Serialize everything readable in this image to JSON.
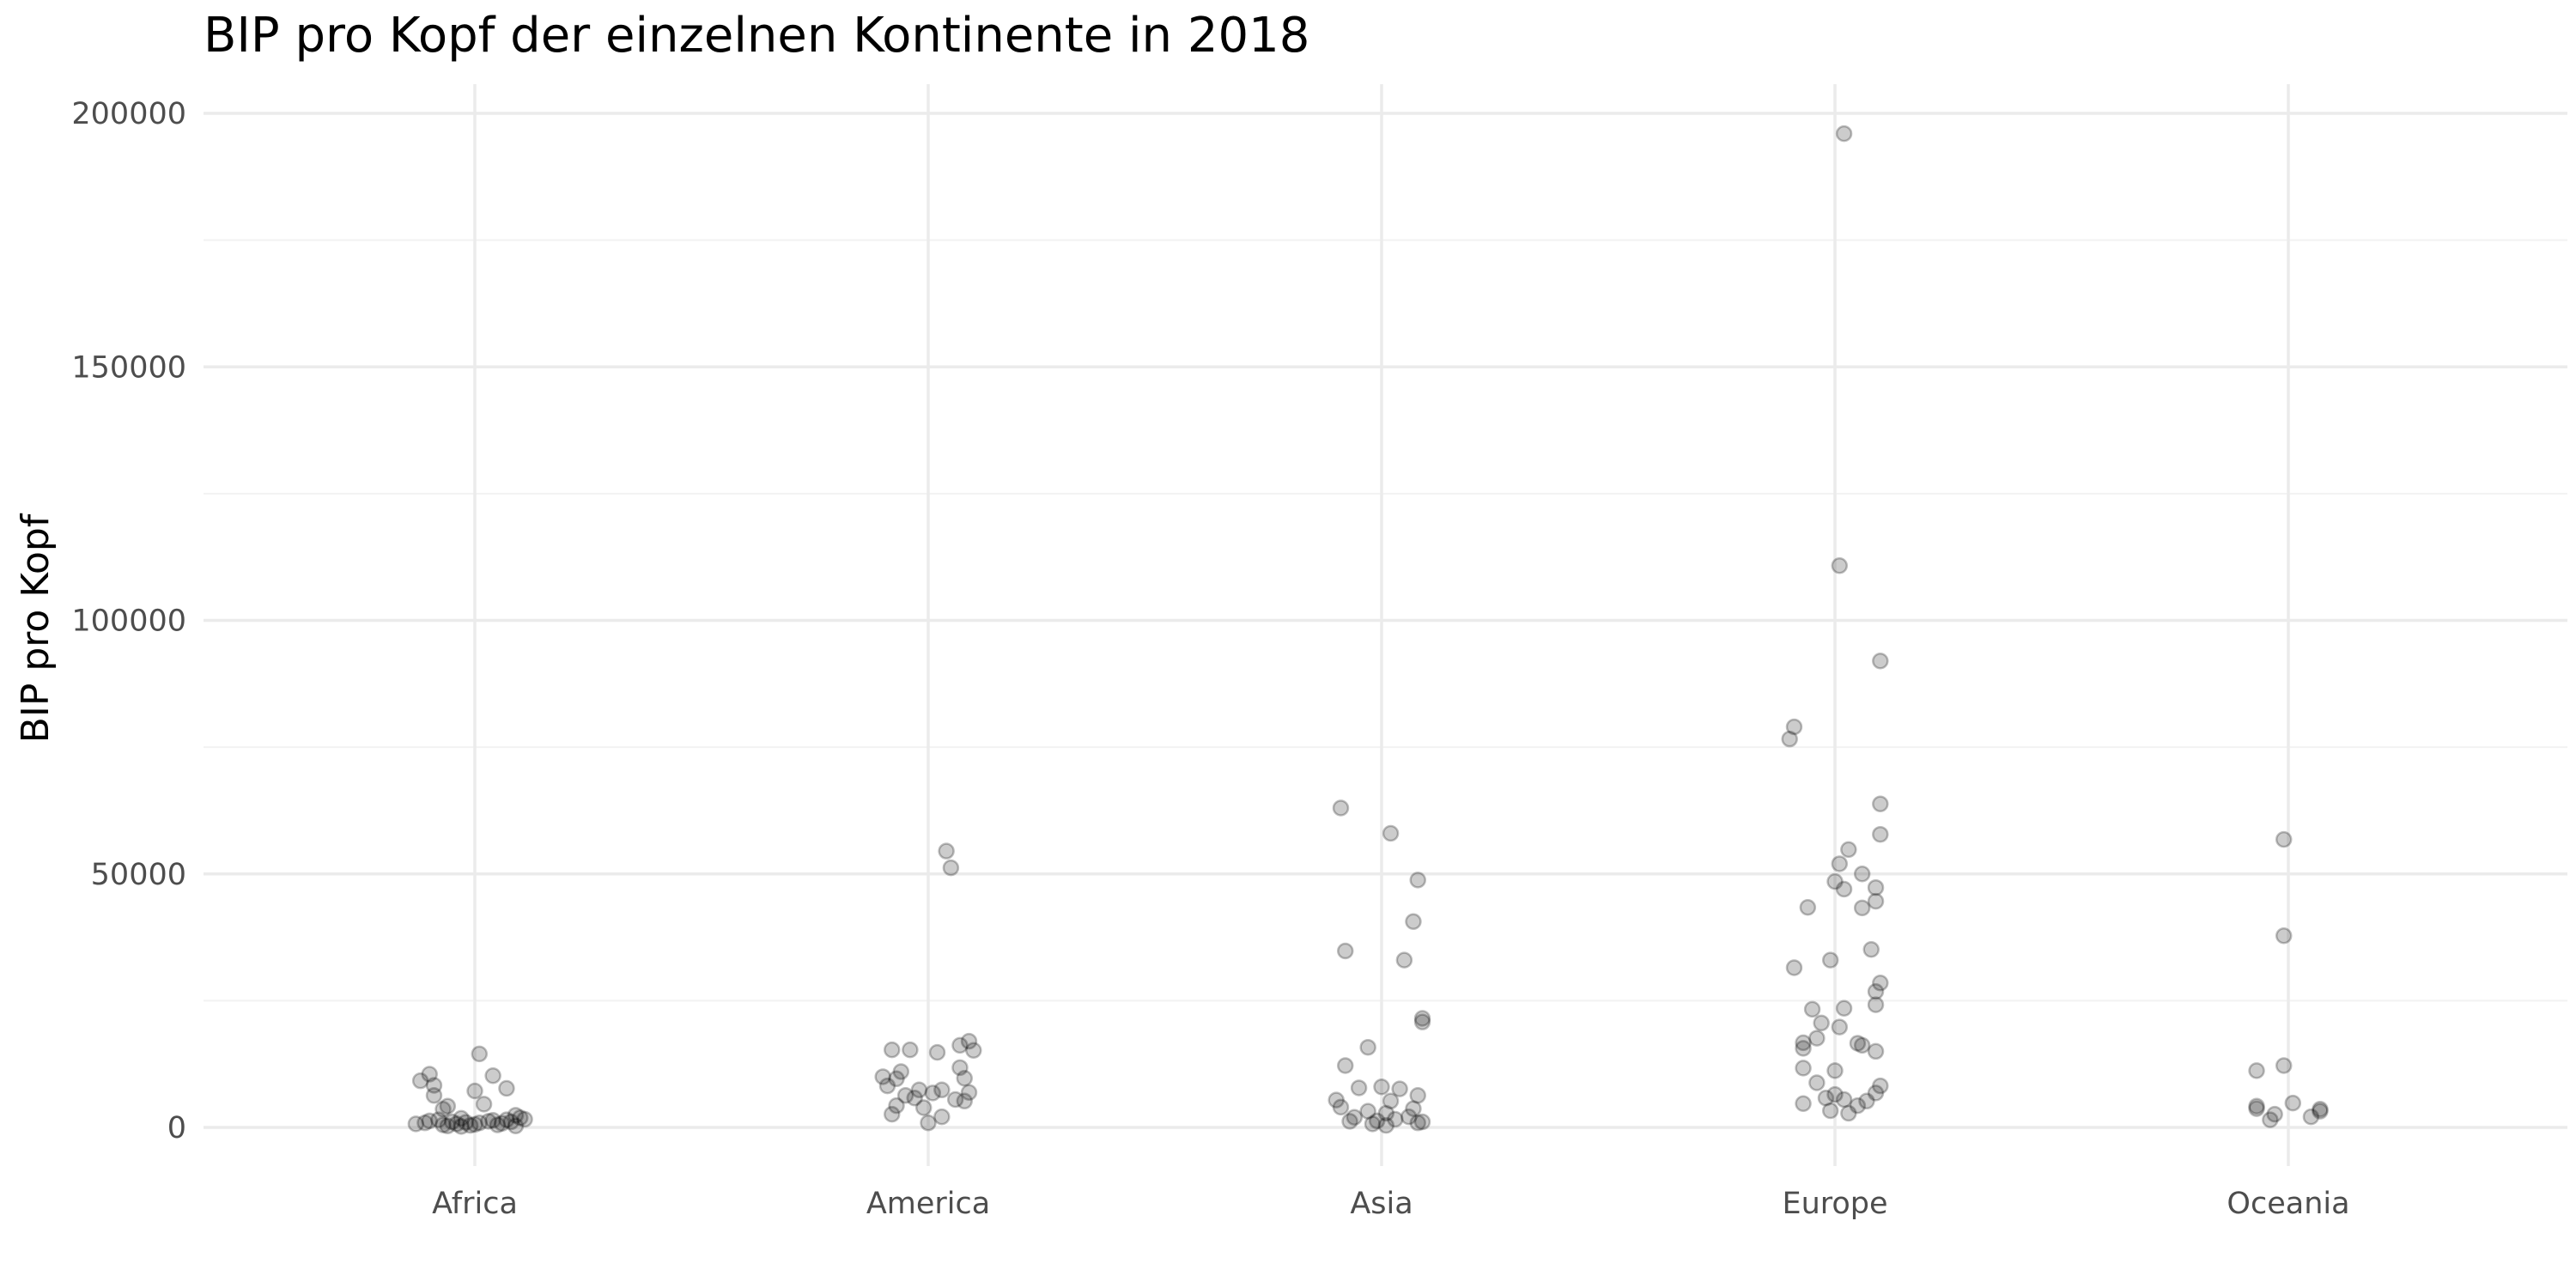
{
  "chart_data": {
    "type": "scatter",
    "title": "BIP pro Kopf der einzelnen Kontinente in 2018",
    "xlabel": "",
    "ylabel": "BIP pro Kopf",
    "categories": [
      "Africa",
      "America",
      "Asia",
      "Europe",
      "Oceania"
    ],
    "ylim": [
      -5000,
      205000
    ],
    "yticks": [
      0,
      50000,
      100000,
      150000,
      200000
    ],
    "ytick_labels": [
      "0",
      "50000",
      "100000",
      "150000",
      "200000"
    ],
    "grid": true,
    "legend": "none",
    "point_color": "#000000",
    "point_alpha": 0.2,
    "points": [
      {
        "category": "Africa",
        "jitter": -0.1,
        "y": 10500
      },
      {
        "category": "Africa",
        "jitter": -0.12,
        "y": 9200
      },
      {
        "category": "Africa",
        "jitter": -0.09,
        "y": 8300
      },
      {
        "category": "Africa",
        "jitter": 0.01,
        "y": 14500
      },
      {
        "category": "Africa",
        "jitter": 0.04,
        "y": 10200
      },
      {
        "category": "Africa",
        "jitter": 0.07,
        "y": 7700
      },
      {
        "category": "Africa",
        "jitter": 0.0,
        "y": 7200
      },
      {
        "category": "Africa",
        "jitter": -0.09,
        "y": 6300
      },
      {
        "category": "Africa",
        "jitter": 0.02,
        "y": 4600
      },
      {
        "category": "Africa",
        "jitter": -0.06,
        "y": 4200
      },
      {
        "category": "Africa",
        "jitter": -0.07,
        "y": 3600
      },
      {
        "category": "Africa",
        "jitter": 0.09,
        "y": 2400
      },
      {
        "category": "Africa",
        "jitter": 0.1,
        "y": 1900
      },
      {
        "category": "Africa",
        "jitter": 0.07,
        "y": 1500
      },
      {
        "category": "Africa",
        "jitter": -0.1,
        "y": 1300
      },
      {
        "category": "Africa",
        "jitter": -0.03,
        "y": 1800
      },
      {
        "category": "Africa",
        "jitter": -0.05,
        "y": 1100
      },
      {
        "category": "Africa",
        "jitter": -0.11,
        "y": 900
      },
      {
        "category": "Africa",
        "jitter": -0.13,
        "y": 700
      },
      {
        "category": "Africa",
        "jitter": -0.07,
        "y": 500
      },
      {
        "category": "Africa",
        "jitter": -0.06,
        "y": 300
      },
      {
        "category": "Africa",
        "jitter": -0.04,
        "y": 700
      },
      {
        "category": "Africa",
        "jitter": -0.02,
        "y": 1000
      },
      {
        "category": "Africa",
        "jitter": -0.01,
        "y": 400
      },
      {
        "category": "Africa",
        "jitter": 0.0,
        "y": 600
      },
      {
        "category": "Africa",
        "jitter": 0.01,
        "y": 900
      },
      {
        "category": "Africa",
        "jitter": 0.03,
        "y": 1200
      },
      {
        "category": "Africa",
        "jitter": 0.05,
        "y": 500
      },
      {
        "category": "Africa",
        "jitter": 0.06,
        "y": 800
      },
      {
        "category": "Africa",
        "jitter": 0.08,
        "y": 1100
      },
      {
        "category": "Africa",
        "jitter": 0.09,
        "y": 300
      },
      {
        "category": "Africa",
        "jitter": 0.11,
        "y": 1600
      },
      {
        "category": "Africa",
        "jitter": -0.08,
        "y": 1500
      },
      {
        "category": "Africa",
        "jitter": 0.04,
        "y": 1400
      },
      {
        "category": "Africa",
        "jitter": -0.03,
        "y": 200
      },
      {
        "category": "America",
        "jitter": 0.04,
        "y": 54500
      },
      {
        "category": "America",
        "jitter": 0.05,
        "y": 51200
      },
      {
        "category": "America",
        "jitter": 0.09,
        "y": 17000
      },
      {
        "category": "America",
        "jitter": 0.1,
        "y": 15200
      },
      {
        "category": "America",
        "jitter": -0.08,
        "y": 15300
      },
      {
        "category": "America",
        "jitter": -0.04,
        "y": 15300
      },
      {
        "category": "America",
        "jitter": 0.02,
        "y": 14800
      },
      {
        "category": "America",
        "jitter": 0.07,
        "y": 16200
      },
      {
        "category": "America",
        "jitter": 0.07,
        "y": 11800
      },
      {
        "category": "America",
        "jitter": -0.06,
        "y": 11000
      },
      {
        "category": "America",
        "jitter": -0.1,
        "y": 10000
      },
      {
        "category": "America",
        "jitter": -0.07,
        "y": 9600
      },
      {
        "category": "America",
        "jitter": -0.09,
        "y": 8200
      },
      {
        "category": "America",
        "jitter": 0.08,
        "y": 9700
      },
      {
        "category": "America",
        "jitter": -0.02,
        "y": 7400
      },
      {
        "category": "America",
        "jitter": 0.01,
        "y": 6800
      },
      {
        "category": "America",
        "jitter": 0.03,
        "y": 7400
      },
      {
        "category": "America",
        "jitter": 0.09,
        "y": 6900
      },
      {
        "category": "America",
        "jitter": -0.03,
        "y": 5800
      },
      {
        "category": "America",
        "jitter": 0.08,
        "y": 5200
      },
      {
        "category": "America",
        "jitter": 0.06,
        "y": 5500
      },
      {
        "category": "America",
        "jitter": -0.07,
        "y": 4300
      },
      {
        "category": "America",
        "jitter": -0.01,
        "y": 3900
      },
      {
        "category": "America",
        "jitter": -0.08,
        "y": 2600
      },
      {
        "category": "America",
        "jitter": 0.03,
        "y": 2100
      },
      {
        "category": "America",
        "jitter": 0.0,
        "y": 900
      },
      {
        "category": "America",
        "jitter": -0.05,
        "y": 6300
      },
      {
        "category": "Asia",
        "jitter": -0.09,
        "y": 63000
      },
      {
        "category": "Asia",
        "jitter": 0.02,
        "y": 58000
      },
      {
        "category": "Asia",
        "jitter": 0.08,
        "y": 48800
      },
      {
        "category": "Asia",
        "jitter": 0.07,
        "y": 40600
      },
      {
        "category": "Asia",
        "jitter": -0.08,
        "y": 34800
      },
      {
        "category": "Asia",
        "jitter": 0.05,
        "y": 33000
      },
      {
        "category": "Asia",
        "jitter": 0.09,
        "y": 21500
      },
      {
        "category": "Asia",
        "jitter": 0.09,
        "y": 20800
      },
      {
        "category": "Asia",
        "jitter": -0.03,
        "y": 15800
      },
      {
        "category": "Asia",
        "jitter": -0.08,
        "y": 12200
      },
      {
        "category": "Asia",
        "jitter": -0.05,
        "y": 7800
      },
      {
        "category": "Asia",
        "jitter": 0.0,
        "y": 8000
      },
      {
        "category": "Asia",
        "jitter": 0.04,
        "y": 7600
      },
      {
        "category": "Asia",
        "jitter": 0.08,
        "y": 6300
      },
      {
        "category": "Asia",
        "jitter": -0.1,
        "y": 5400
      },
      {
        "category": "Asia",
        "jitter": 0.02,
        "y": 5200
      },
      {
        "category": "Asia",
        "jitter": -0.09,
        "y": 4000
      },
      {
        "category": "Asia",
        "jitter": 0.07,
        "y": 3700
      },
      {
        "category": "Asia",
        "jitter": -0.03,
        "y": 3200
      },
      {
        "category": "Asia",
        "jitter": 0.01,
        "y": 2800
      },
      {
        "category": "Asia",
        "jitter": -0.06,
        "y": 2000
      },
      {
        "category": "Asia",
        "jitter": 0.06,
        "y": 2100
      },
      {
        "category": "Asia",
        "jitter": -0.07,
        "y": 1200
      },
      {
        "category": "Asia",
        "jitter": -0.01,
        "y": 1300
      },
      {
        "category": "Asia",
        "jitter": 0.03,
        "y": 1600
      },
      {
        "category": "Asia",
        "jitter": 0.09,
        "y": 1100
      },
      {
        "category": "Asia",
        "jitter": 0.08,
        "y": 900
      },
      {
        "category": "Asia",
        "jitter": -0.02,
        "y": 700
      },
      {
        "category": "Asia",
        "jitter": 0.01,
        "y": 400
      },
      {
        "category": "Europe",
        "jitter": 0.02,
        "y": 196000
      },
      {
        "category": "Europe",
        "jitter": 0.01,
        "y": 110800
      },
      {
        "category": "Europe",
        "jitter": 0.1,
        "y": 92000
      },
      {
        "category": "Europe",
        "jitter": -0.09,
        "y": 79000
      },
      {
        "category": "Europe",
        "jitter": -0.1,
        "y": 76600
      },
      {
        "category": "Europe",
        "jitter": 0.1,
        "y": 63800
      },
      {
        "category": "Europe",
        "jitter": 0.1,
        "y": 57800
      },
      {
        "category": "Europe",
        "jitter": 0.03,
        "y": 54800
      },
      {
        "category": "Europe",
        "jitter": 0.01,
        "y": 52000
      },
      {
        "category": "Europe",
        "jitter": 0.06,
        "y": 50000
      },
      {
        "category": "Europe",
        "jitter": 0.0,
        "y": 48500
      },
      {
        "category": "Europe",
        "jitter": 0.02,
        "y": 47000
      },
      {
        "category": "Europe",
        "jitter": 0.09,
        "y": 47300
      },
      {
        "category": "Europe",
        "jitter": -0.06,
        "y": 43400
      },
      {
        "category": "Europe",
        "jitter": 0.06,
        "y": 43300
      },
      {
        "category": "Europe",
        "jitter": 0.09,
        "y": 44600
      },
      {
        "category": "Europe",
        "jitter": 0.08,
        "y": 35100
      },
      {
        "category": "Europe",
        "jitter": -0.01,
        "y": 33000
      },
      {
        "category": "Europe",
        "jitter": -0.09,
        "y": 31500
      },
      {
        "category": "Europe",
        "jitter": 0.1,
        "y": 28500
      },
      {
        "category": "Europe",
        "jitter": 0.09,
        "y": 26800
      },
      {
        "category": "Europe",
        "jitter": 0.09,
        "y": 24200
      },
      {
        "category": "Europe",
        "jitter": -0.05,
        "y": 23300
      },
      {
        "category": "Europe",
        "jitter": 0.02,
        "y": 23500
      },
      {
        "category": "Europe",
        "jitter": -0.03,
        "y": 20600
      },
      {
        "category": "Europe",
        "jitter": 0.01,
        "y": 19800
      },
      {
        "category": "Europe",
        "jitter": -0.04,
        "y": 17600
      },
      {
        "category": "Europe",
        "jitter": -0.07,
        "y": 16700
      },
      {
        "category": "Europe",
        "jitter": -0.07,
        "y": 15600
      },
      {
        "category": "Europe",
        "jitter": 0.05,
        "y": 16600
      },
      {
        "category": "Europe",
        "jitter": 0.06,
        "y": 16200
      },
      {
        "category": "Europe",
        "jitter": 0.09,
        "y": 15000
      },
      {
        "category": "Europe",
        "jitter": -0.07,
        "y": 11700
      },
      {
        "category": "Europe",
        "jitter": 0.0,
        "y": 11200
      },
      {
        "category": "Europe",
        "jitter": -0.04,
        "y": 8800
      },
      {
        "category": "Europe",
        "jitter": 0.1,
        "y": 8200
      },
      {
        "category": "Europe",
        "jitter": 0.09,
        "y": 6800
      },
      {
        "category": "Europe",
        "jitter": 0.0,
        "y": 6500
      },
      {
        "category": "Europe",
        "jitter": -0.02,
        "y": 5800
      },
      {
        "category": "Europe",
        "jitter": 0.02,
        "y": 5500
      },
      {
        "category": "Europe",
        "jitter": 0.07,
        "y": 5200
      },
      {
        "category": "Europe",
        "jitter": 0.05,
        "y": 4300
      },
      {
        "category": "Europe",
        "jitter": -0.07,
        "y": 4700
      },
      {
        "category": "Europe",
        "jitter": -0.01,
        "y": 3300
      },
      {
        "category": "Europe",
        "jitter": 0.03,
        "y": 2800
      },
      {
        "category": "Oceania",
        "jitter": -0.01,
        "y": 56800
      },
      {
        "category": "Oceania",
        "jitter": -0.01,
        "y": 37800
      },
      {
        "category": "Oceania",
        "jitter": -0.01,
        "y": 12200
      },
      {
        "category": "Oceania",
        "jitter": -0.07,
        "y": 11200
      },
      {
        "category": "Oceania",
        "jitter": 0.01,
        "y": 4800
      },
      {
        "category": "Oceania",
        "jitter": -0.07,
        "y": 4200
      },
      {
        "category": "Oceania",
        "jitter": -0.07,
        "y": 3700
      },
      {
        "category": "Oceania",
        "jitter": 0.07,
        "y": 3600
      },
      {
        "category": "Oceania",
        "jitter": 0.07,
        "y": 3200
      },
      {
        "category": "Oceania",
        "jitter": -0.03,
        "y": 2600
      },
      {
        "category": "Oceania",
        "jitter": 0.05,
        "y": 2100
      },
      {
        "category": "Oceania",
        "jitter": -0.04,
        "y": 1500
      }
    ]
  }
}
